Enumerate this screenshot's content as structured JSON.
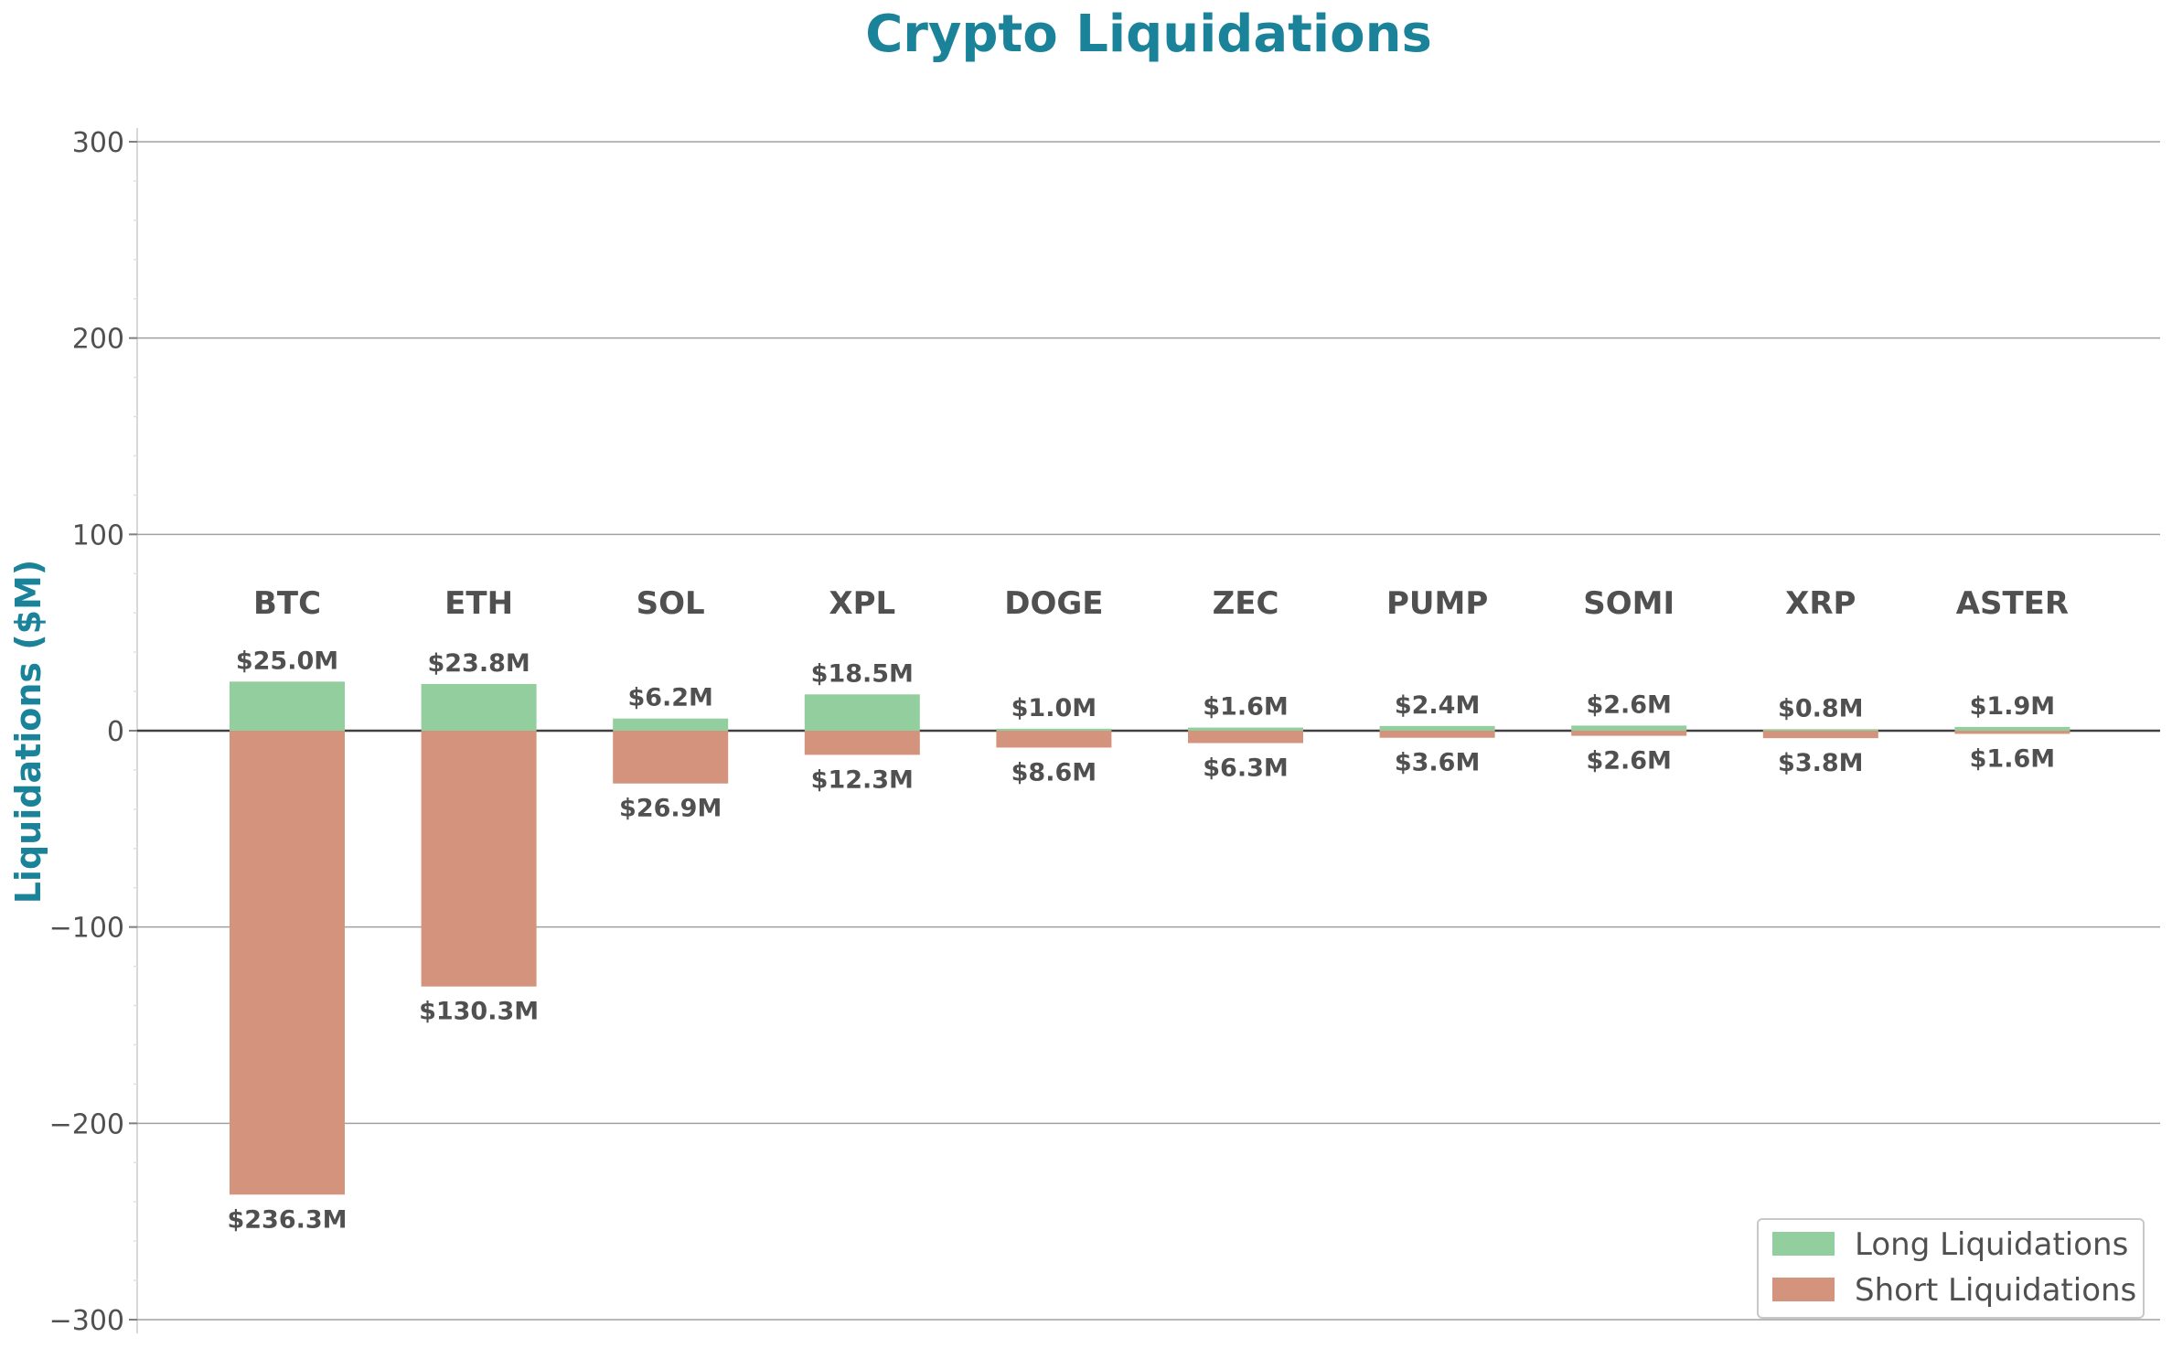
{
  "chart_data": {
    "type": "bar",
    "title": "Crypto Liquidations",
    "ylabel": "Liquidations ($M)",
    "xlabel": "",
    "ylim": [
      -300,
      300
    ],
    "yticks": [
      300,
      200,
      100,
      0,
      -100,
      -200,
      -300
    ],
    "ytick_labels": [
      "300",
      "200",
      "100",
      "0",
      "−100",
      "−200",
      "−300"
    ],
    "grid": true,
    "legend_position": "bottom-right",
    "categories": [
      "BTC",
      "ETH",
      "SOL",
      "XPL",
      "DOGE",
      "ZEC",
      "PUMP",
      "SOMI",
      "XRP",
      "ASTER"
    ],
    "series": [
      {
        "name": "Long Liquidations",
        "color": "#93ce9f",
        "values": [
          25.0,
          23.8,
          6.2,
          18.5,
          1.0,
          1.6,
          2.4,
          2.6,
          0.8,
          1.9
        ],
        "labels": [
          "$25.0M",
          "$23.8M",
          "$6.2M",
          "$18.5M",
          "$1.0M",
          "$1.6M",
          "$2.4M",
          "$2.6M",
          "$0.8M",
          "$1.9M"
        ]
      },
      {
        "name": "Short Liquidations",
        "color": "#d4937c",
        "values": [
          -236.3,
          -130.3,
          -26.9,
          -12.3,
          -8.6,
          -6.3,
          -3.6,
          -2.6,
          -3.8,
          -1.6
        ],
        "labels": [
          "$236.3M",
          "$130.3M",
          "$26.9M",
          "$12.3M",
          "$8.6M",
          "$6.3M",
          "$3.6M",
          "$2.6M",
          "$3.8M",
          "$1.6M"
        ]
      }
    ],
    "colors": {
      "title": "#1a8399",
      "ylabel": "#1a8399",
      "text": "#505050",
      "grid": "#a0a0a0",
      "zero_line": "#404040"
    }
  }
}
